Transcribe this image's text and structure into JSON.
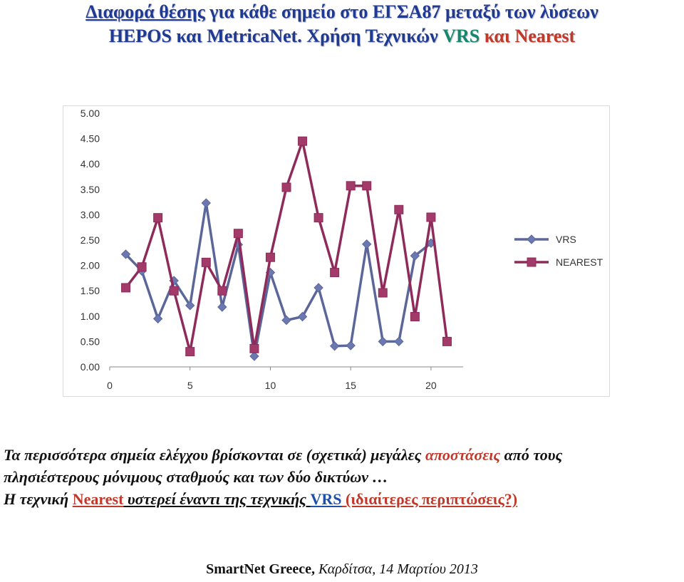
{
  "slide": {
    "title_line1_part1": "Διαφορά θέσης",
    "title_line1_part2": " για κάθε σημείο στο ΕΓΣΑ87 μεταξύ των λύσεων",
    "title_line2_part1": "HEPOS και MetricaNet.",
    "title_line2_part2": "  Χρήση Τεχνικών ",
    "title_line2_vrs": "VRS",
    "title_line2_and": " και ",
    "title_line2_nearest": "Nearest",
    "body_line1_part1": "Τα περισσότερα σημεία ελέγχου βρίσκονται σε (σχετικά)  μεγάλες ",
    "body_line1_accent": "αποστάσεις",
    "body_line1_part2": " από τους",
    "body_line2": "πλησιέστερους μόνιμους σταθμούς και των δύο δικτύων …",
    "body_line3_part1": "Η  τεχνική ",
    "body_line3_nearest": "Nearest",
    "body_line3_part2": " υστερεί έναντι της τεχνικής ",
    "body_line3_vrs": "VRS",
    "body_line3_part3": " (ιδιαίτερες περιπτώσεις?)",
    "footer_bold": "SmartNet Greece, ",
    "footer_italic": "Καρδίτσα, 14 Μαρτίου 2013"
  },
  "colors": {
    "title_blue": "#1f3a93",
    "accent_red": "#c0392b",
    "vrs_line": "#5b6699",
    "nearest_line": "#8e2b5b"
  },
  "chart_data": {
    "type": "line",
    "x": [
      1,
      2,
      3,
      4,
      5,
      6,
      7,
      8,
      9,
      10,
      11,
      12,
      13,
      14,
      15,
      16,
      17,
      18,
      19,
      20,
      21
    ],
    "xlim": [
      0,
      22
    ],
    "ylim": [
      0,
      5
    ],
    "xticks": [
      "0",
      "5",
      "10",
      "15",
      "20"
    ],
    "yticks": [
      "0.00",
      "0.50",
      "1.00",
      "1.50",
      "2.00",
      "2.50",
      "3.00",
      "3.50",
      "4.00",
      "4.50",
      "5.00"
    ],
    "legend_position": "right",
    "series": [
      {
        "name": "VRS",
        "marker": "diamond",
        "values": [
          2.22,
          1.89,
          0.95,
          1.7,
          1.21,
          3.23,
          1.18,
          2.41,
          0.21,
          1.86,
          0.92,
          0.99,
          1.56,
          0.41,
          0.42,
          2.42,
          0.5,
          0.5,
          2.19,
          2.44,
          null
        ]
      },
      {
        "name": "NEAREST",
        "marker": "square",
        "values": [
          1.56,
          1.97,
          2.94,
          1.5,
          0.3,
          2.06,
          1.5,
          2.63,
          0.36,
          2.16,
          3.54,
          4.45,
          2.94,
          1.86,
          3.57,
          3.57,
          1.46,
          3.1,
          0.99,
          2.95,
          0.5
        ]
      }
    ]
  }
}
